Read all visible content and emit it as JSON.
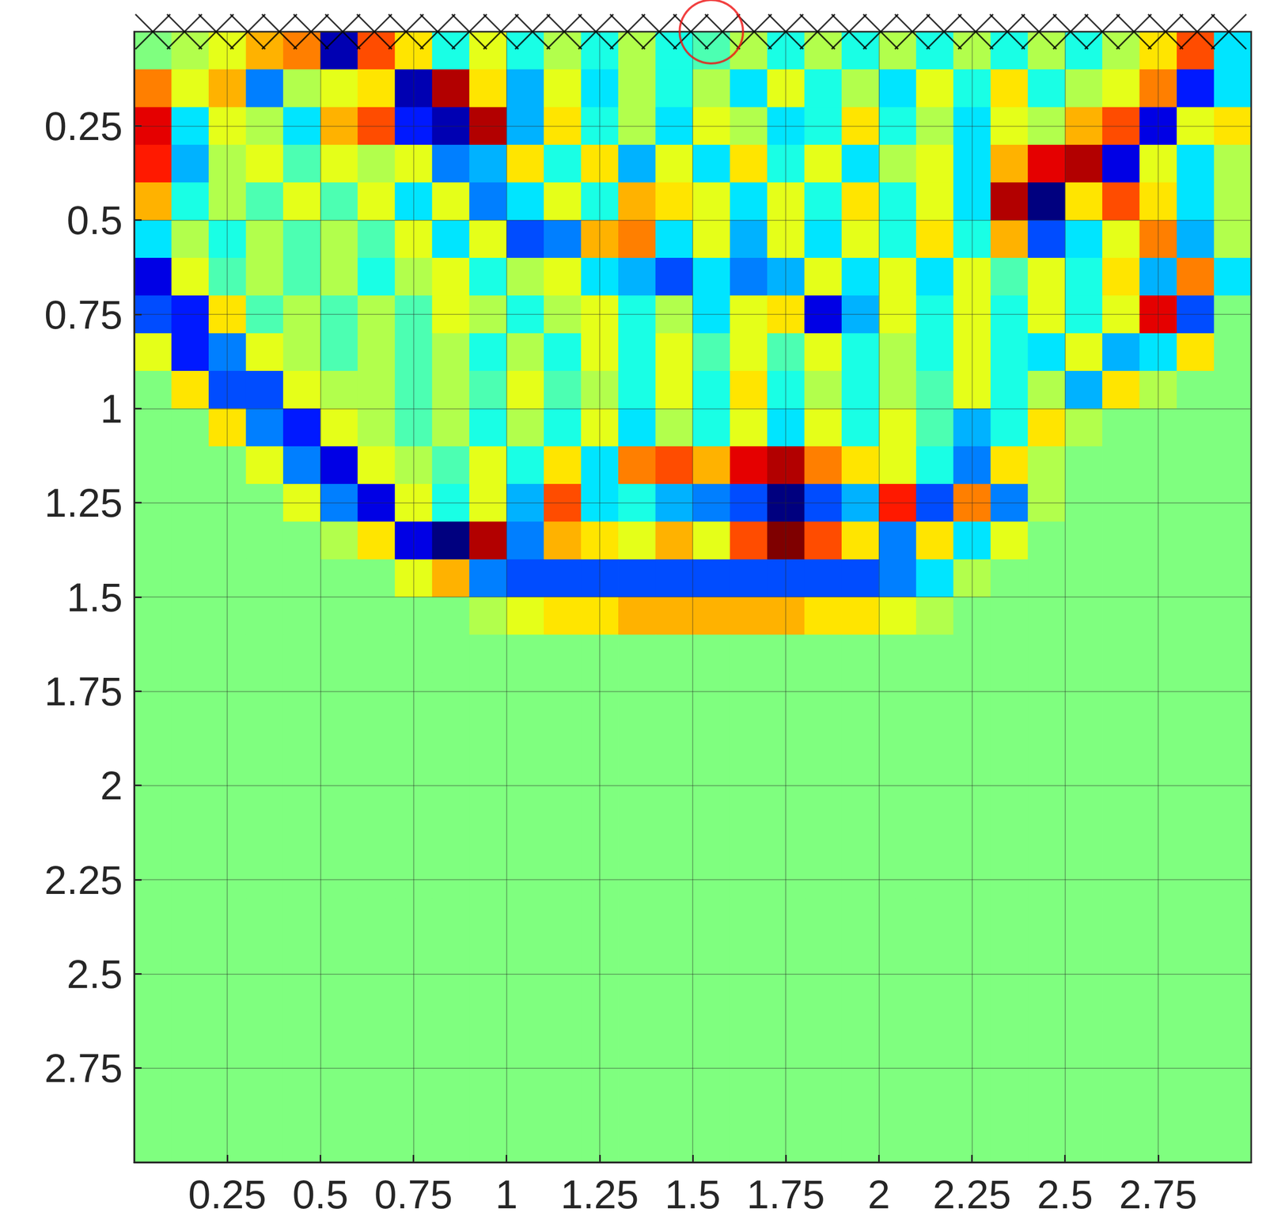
{
  "chart_data": {
    "type": "heatmap",
    "xlim": [
      0,
      3
    ],
    "ylim": [
      0,
      3
    ],
    "xticks": [
      0.25,
      0.5,
      0.75,
      1,
      1.25,
      1.5,
      1.75,
      2,
      2.25,
      2.5,
      2.75
    ],
    "yticks": [
      0.25,
      0.5,
      0.75,
      1,
      1.25,
      1.5,
      1.75,
      2,
      2.25,
      2.5,
      2.75
    ],
    "grid": true,
    "clim": [
      -1,
      1
    ],
    "x": [
      0.05,
      0.15,
      0.25,
      0.35,
      0.45,
      0.55,
      0.65,
      0.75,
      0.85,
      0.95,
      1.05,
      1.15,
      1.25,
      1.35,
      1.45,
      1.55,
      1.65,
      1.75,
      1.85,
      1.95,
      2.05,
      2.15,
      2.25,
      2.35,
      2.45,
      2.55,
      2.65,
      2.75,
      2.85,
      2.95
    ],
    "y": [
      0.05,
      0.15,
      0.25,
      0.35,
      0.45,
      0.55,
      0.65,
      0.75,
      0.85,
      0.95,
      1.05,
      1.15,
      1.25,
      1.35,
      1.45,
      1.55,
      1.65,
      1.75,
      1.85,
      1.95,
      2.05,
      2.15,
      2.25,
      2.35,
      2.45,
      2.55,
      2.65,
      2.75,
      2.85,
      2.95
    ],
    "cells": [
      [
        0,
        0.1,
        0.2,
        0.4,
        0.5,
        -0.9,
        0.6,
        0.3,
        -0.2,
        0.2,
        -0.2,
        0.1,
        -0.2,
        0.1,
        -0.2,
        -0.1,
        0.1,
        -0.2,
        0.1,
        -0.2,
        0.1,
        -0.2,
        0.1,
        -0.2,
        0.1,
        -0.2,
        0.1,
        0.3,
        0.6,
        -0.3
      ],
      [
        0.5,
        0.2,
        0.4,
        -0.5,
        0.1,
        0.2,
        0.3,
        -0.9,
        0.9,
        0.3,
        -0.4,
        0.2,
        -0.3,
        0.1,
        -0.2,
        0.1,
        -0.3,
        0.2,
        -0.2,
        0.1,
        -0.3,
        0.2,
        -0.2,
        0.3,
        -0.2,
        0.1,
        0.2,
        0.5,
        -0.7,
        -0.3
      ],
      [
        0.8,
        -0.3,
        0.2,
        0.1,
        -0.3,
        0.4,
        0.6,
        -0.7,
        -0.9,
        0.9,
        -0.4,
        0.3,
        -0.2,
        0.1,
        -0.3,
        0.2,
        0.1,
        -0.3,
        -0.2,
        0.3,
        -0.2,
        0.1,
        -0.3,
        0.2,
        0.1,
        0.4,
        0.6,
        -0.8,
        0.2,
        0.3
      ],
      [
        0.7,
        -0.4,
        0.1,
        0.2,
        -0.1,
        0.2,
        0.1,
        0.2,
        -0.5,
        -0.4,
        0.3,
        -0.2,
        0.3,
        -0.4,
        0.2,
        -0.3,
        0.3,
        -0.2,
        0.2,
        -0.3,
        0.1,
        0.2,
        -0.3,
        0.4,
        0.8,
        0.9,
        -0.8,
        0.2,
        -0.3,
        0.1
      ],
      [
        0.4,
        -0.2,
        0.1,
        -0.1,
        0.2,
        -0.1,
        0.2,
        -0.3,
        0.2,
        -0.5,
        -0.3,
        0.2,
        -0.2,
        0.4,
        0.3,
        0.2,
        -0.3,
        0.2,
        -0.2,
        0.3,
        -0.2,
        0.2,
        -0.3,
        0.9,
        -1,
        0.3,
        0.6,
        0.3,
        -0.3,
        0.1
      ],
      [
        -0.3,
        0.1,
        -0.2,
        0.1,
        -0.1,
        0.1,
        -0.1,
        0.2,
        -0.3,
        0.2,
        -0.6,
        -0.5,
        0.4,
        0.5,
        -0.3,
        0.2,
        -0.4,
        0.2,
        -0.3,
        0.2,
        -0.2,
        0.3,
        -0.2,
        0.4,
        -0.6,
        -0.3,
        0.2,
        0.5,
        -0.4,
        0.1
      ],
      [
        -0.8,
        0.2,
        -0.1,
        0.1,
        -0.1,
        0.1,
        -0.2,
        0.1,
        0.2,
        -0.2,
        0.1,
        0.2,
        -0.3,
        -0.4,
        -0.6,
        -0.3,
        -0.5,
        -0.4,
        0.2,
        -0.3,
        0.2,
        -0.3,
        0.2,
        -0.1,
        0.2,
        -0.2,
        0.3,
        -0.4,
        0.5,
        -0.3
      ],
      [
        -0.6,
        -0.7,
        0.3,
        -0.1,
        0.1,
        -0.1,
        0.1,
        -0.1,
        0.2,
        0.1,
        -0.2,
        0.1,
        0.2,
        -0.2,
        0.1,
        -0.3,
        0.2,
        0.3,
        -0.8,
        -0.4,
        0.2,
        -0.2,
        0.2,
        -0.2,
        0.2,
        -0.2,
        0.2,
        0.8,
        -0.6,
        0
      ],
      [
        0.2,
        -0.7,
        -0.5,
        0.2,
        0.1,
        -0.1,
        0.1,
        -0.1,
        0.1,
        -0.2,
        0.1,
        -0.2,
        0.2,
        -0.2,
        0.2,
        -0.1,
        0.2,
        -0.1,
        0.2,
        -0.2,
        0.1,
        -0.2,
        0.2,
        -0.2,
        -0.3,
        0.2,
        -0.4,
        -0.3,
        0.3,
        0
      ],
      [
        0,
        0.3,
        -0.6,
        -0.6,
        0.2,
        0.1,
        0.1,
        -0.1,
        0.1,
        -0.1,
        0.2,
        -0.1,
        0.1,
        -0.2,
        0.2,
        -0.2,
        0.3,
        -0.2,
        0.1,
        -0.2,
        0.1,
        -0.1,
        0.2,
        -0.2,
        0.1,
        -0.4,
        0.3,
        0.1,
        0,
        0
      ],
      [
        0,
        0,
        0.3,
        -0.5,
        -0.7,
        0.2,
        0.1,
        -0.1,
        0.1,
        -0.2,
        0.1,
        -0.2,
        0.2,
        -0.3,
        0.1,
        -0.2,
        0.2,
        -0.3,
        0.2,
        -0.2,
        0.2,
        -0.1,
        -0.4,
        -0.2,
        0.3,
        0.1,
        0,
        0,
        0,
        0
      ],
      [
        0,
        0,
        0,
        0.2,
        -0.5,
        -0.8,
        0.2,
        0.1,
        -0.1,
        0.2,
        -0.2,
        0.3,
        -0.3,
        0.5,
        0.6,
        0.4,
        0.8,
        0.9,
        0.5,
        0.3,
        0.2,
        -0.2,
        -0.5,
        0.3,
        0.1,
        0,
        0,
        0,
        0,
        0
      ],
      [
        0,
        0,
        0,
        0,
        0.2,
        -0.5,
        -0.8,
        0.2,
        -0.2,
        0.2,
        -0.4,
        0.6,
        -0.3,
        -0.2,
        -0.4,
        -0.5,
        -0.6,
        -1,
        -0.6,
        -0.4,
        0.7,
        -0.6,
        0.5,
        -0.5,
        0.1,
        0,
        0,
        0,
        0,
        0
      ],
      [
        0,
        0,
        0,
        0,
        0,
        0.1,
        0.3,
        -0.8,
        -1,
        0.9,
        -0.5,
        0.4,
        0.3,
        0.2,
        0.4,
        0.2,
        0.6,
        1,
        0.6,
        0.3,
        -0.5,
        0.3,
        -0.3,
        0.2,
        0,
        0,
        0,
        0,
        0,
        0
      ],
      [
        0,
        0,
        0,
        0,
        0,
        0,
        0,
        0.2,
        0.4,
        -0.5,
        -0.6,
        -0.6,
        -0.6,
        -0.6,
        -0.6,
        -0.6,
        -0.6,
        -0.6,
        -0.6,
        -0.6,
        -0.5,
        -0.3,
        0.1,
        0,
        0,
        0,
        0,
        0,
        0,
        0
      ],
      [
        0,
        0,
        0,
        0,
        0,
        0,
        0,
        0,
        0,
        0.1,
        0.2,
        0.3,
        0.3,
        0.4,
        0.4,
        0.4,
        0.4,
        0.4,
        0.3,
        0.3,
        0.2,
        0.1,
        0,
        0,
        0,
        0,
        0,
        0,
        0,
        0
      ],
      [
        0,
        0,
        0,
        0,
        0,
        0,
        0,
        0,
        0,
        0,
        0,
        0,
        0,
        0,
        0,
        0,
        0,
        0,
        0,
        0,
        0,
        0,
        0,
        0,
        0,
        0,
        0,
        0,
        0,
        0
      ],
      [
        0,
        0,
        0,
        0,
        0,
        0,
        0,
        0,
        0,
        0,
        0,
        0,
        0,
        0,
        0,
        0,
        0,
        0,
        0,
        0,
        0,
        0,
        0,
        0,
        0,
        0,
        0,
        0,
        0,
        0
      ],
      [
        0,
        0,
        0,
        0,
        0,
        0,
        0,
        0,
        0,
        0,
        0,
        0,
        0,
        0,
        0,
        0,
        0,
        0,
        0,
        0,
        0,
        0,
        0,
        0,
        0,
        0,
        0,
        0,
        0,
        0
      ],
      [
        0,
        0,
        0,
        0,
        0,
        0,
        0,
        0,
        0,
        0,
        0,
        0,
        0,
        0,
        0,
        0,
        0,
        0,
        0,
        0,
        0,
        0,
        0,
        0,
        0,
        0,
        0,
        0,
        0,
        0
      ],
      [
        0,
        0,
        0,
        0,
        0,
        0,
        0,
        0,
        0,
        0,
        0,
        0,
        0,
        0,
        0,
        0,
        0,
        0,
        0,
        0,
        0,
        0,
        0,
        0,
        0,
        0,
        0,
        0,
        0,
        0
      ],
      [
        0,
        0,
        0,
        0,
        0,
        0,
        0,
        0,
        0,
        0,
        0,
        0,
        0,
        0,
        0,
        0,
        0,
        0,
        0,
        0,
        0,
        0,
        0,
        0,
        0,
        0,
        0,
        0,
        0,
        0
      ],
      [
        0,
        0,
        0,
        0,
        0,
        0,
        0,
        0,
        0,
        0,
        0,
        0,
        0,
        0,
        0,
        0,
        0,
        0,
        0,
        0,
        0,
        0,
        0,
        0,
        0,
        0,
        0,
        0,
        0,
        0
      ],
      [
        0,
        0,
        0,
        0,
        0,
        0,
        0,
        0,
        0,
        0,
        0,
        0,
        0,
        0,
        0,
        0,
        0,
        0,
        0,
        0,
        0,
        0,
        0,
        0,
        0,
        0,
        0,
        0,
        0,
        0
      ],
      [
        0,
        0,
        0,
        0,
        0,
        0,
        0,
        0,
        0,
        0,
        0,
        0,
        0,
        0,
        0,
        0,
        0,
        0,
        0,
        0,
        0,
        0,
        0,
        0,
        0,
        0,
        0,
        0,
        0,
        0
      ],
      [
        0,
        0,
        0,
        0,
        0,
        0,
        0,
        0,
        0,
        0,
        0,
        0,
        0,
        0,
        0,
        0,
        0,
        0,
        0,
        0,
        0,
        0,
        0,
        0,
        0,
        0,
        0,
        0,
        0,
        0
      ],
      [
        0,
        0,
        0,
        0,
        0,
        0,
        0,
        0,
        0,
        0,
        0,
        0,
        0,
        0,
        0,
        0,
        0,
        0,
        0,
        0,
        0,
        0,
        0,
        0,
        0,
        0,
        0,
        0,
        0,
        0
      ],
      [
        0,
        0,
        0,
        0,
        0,
        0,
        0,
        0,
        0,
        0,
        0,
        0,
        0,
        0,
        0,
        0,
        0,
        0,
        0,
        0,
        0,
        0,
        0,
        0,
        0,
        0,
        0,
        0,
        0,
        0
      ],
      [
        0,
        0,
        0,
        0,
        0,
        0,
        0,
        0,
        0,
        0,
        0,
        0,
        0,
        0,
        0,
        0,
        0,
        0,
        0,
        0,
        0,
        0,
        0,
        0,
        0,
        0,
        0,
        0,
        0,
        0
      ],
      [
        0,
        0,
        0,
        0,
        0,
        0,
        0,
        0,
        0,
        0,
        0,
        0,
        0,
        0,
        0,
        0,
        0,
        0,
        0,
        0,
        0,
        0,
        0,
        0,
        0,
        0,
        0,
        0,
        0,
        0
      ]
    ],
    "series": [
      {
        "type": "scatter",
        "marker": "x",
        "color": "#000000",
        "x": [
          0.05,
          0.135,
          0.22,
          0.305,
          0.39,
          0.475,
          0.56,
          0.645,
          0.73,
          0.815,
          0.9,
          0.985,
          1.07,
          1.155,
          1.24,
          1.325,
          1.41,
          1.495,
          1.58,
          1.665,
          1.75,
          1.835,
          1.92,
          2.005,
          2.09,
          2.175,
          2.26,
          2.345,
          2.43,
          2.515,
          2.6,
          2.685,
          2.77,
          2.855,
          2.94
        ],
        "y": [
          0,
          0,
          0,
          0,
          0,
          0,
          0,
          0,
          0,
          0,
          0,
          0,
          0,
          0,
          0,
          0,
          0,
          0,
          0,
          0,
          0,
          0,
          0,
          0,
          0,
          0,
          0,
          0,
          0,
          0,
          0,
          0,
          0,
          0,
          0
        ]
      },
      {
        "type": "scatter",
        "marker": "circle",
        "color": "#ee1111",
        "x": [
          1.55
        ],
        "y": [
          0
        ]
      }
    ]
  }
}
